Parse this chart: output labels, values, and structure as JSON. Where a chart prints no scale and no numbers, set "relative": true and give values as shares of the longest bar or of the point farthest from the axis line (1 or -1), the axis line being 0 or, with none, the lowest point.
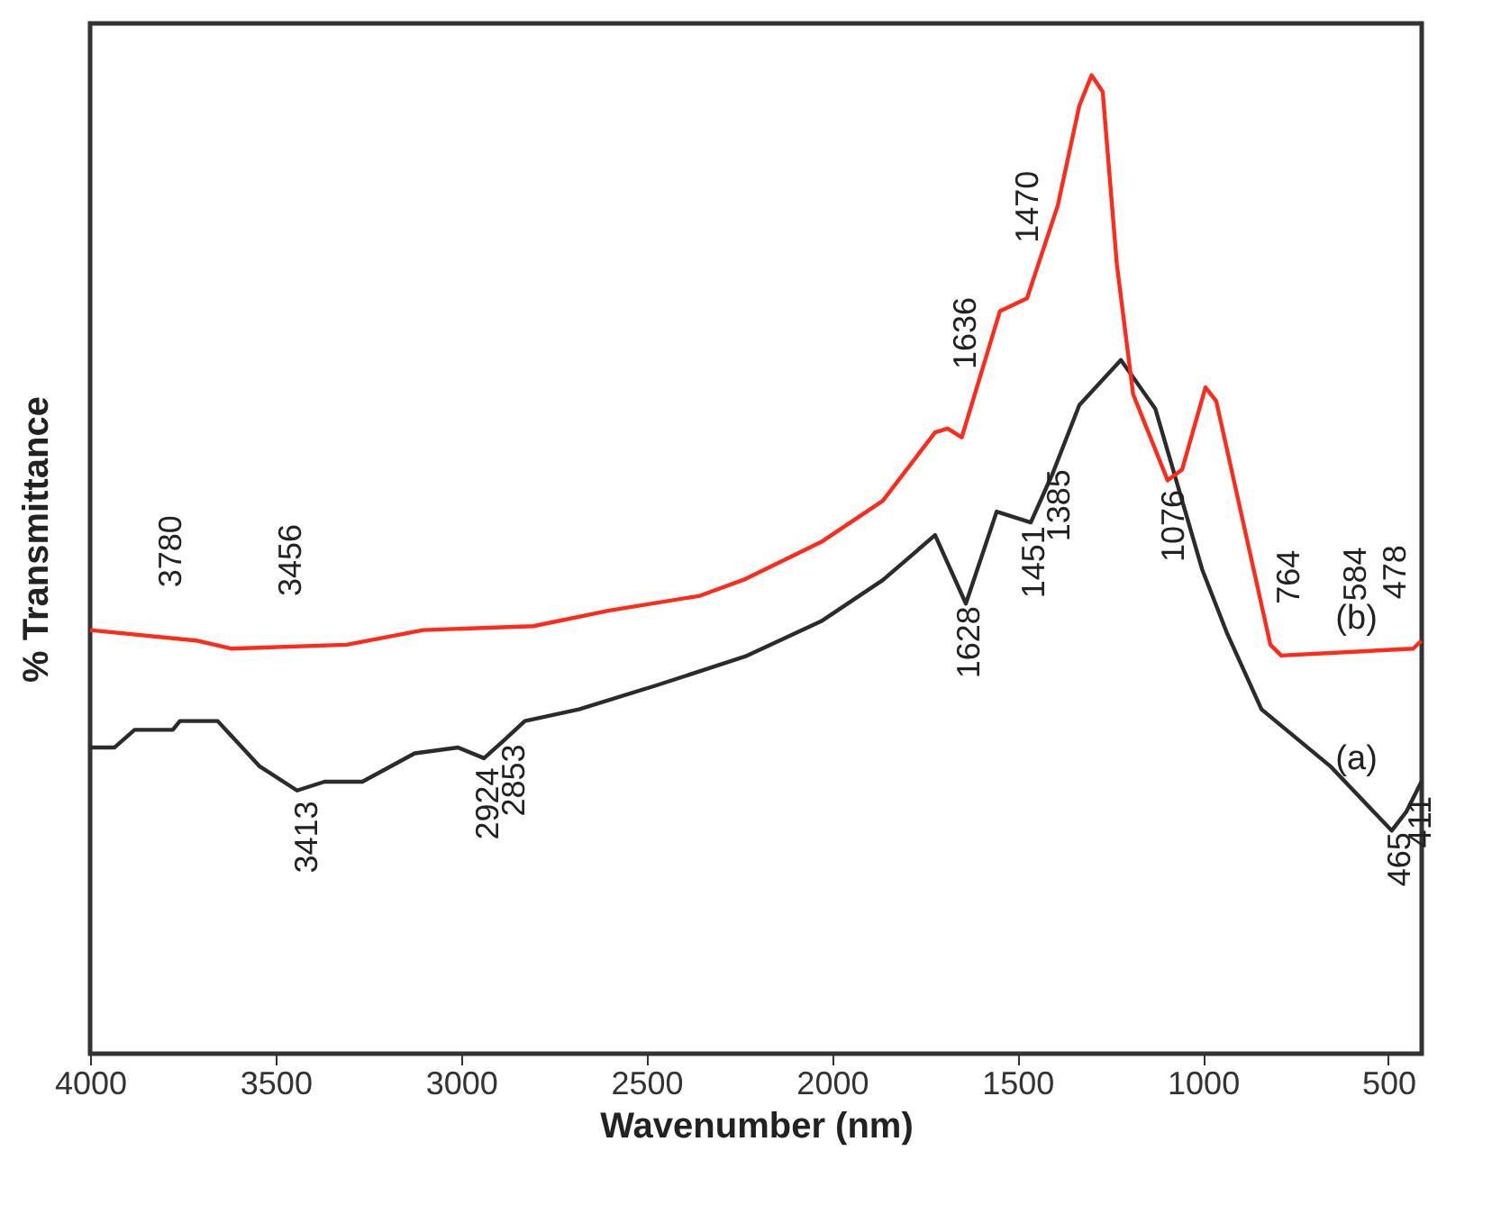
{
  "chart_data": {
    "type": "line",
    "relative": true,
    "xlabel": "Wavenumber (nm)",
    "ylabel": "% Transmittance",
    "xlim": [
      4000,
      410
    ],
    "xticks": [
      4000,
      3500,
      3000,
      2500,
      2000,
      1500,
      1000,
      500
    ],
    "tick_labels": "x",
    "grid": false,
    "marker": "none",
    "line_style": "solid",
    "series": [
      {
        "name": "(a)",
        "color": "#2b2b2b",
        "x": [
          4000,
          3934,
          3880,
          3777,
          3758,
          3656,
          3544,
          3442,
          3368,
          3266,
          3125,
          3008,
          2938,
          2885,
          2828,
          2682,
          2477,
          2234,
          2029,
          1863,
          1722,
          1639,
          1556,
          1464,
          1405,
          1333,
          1221,
          1128,
          1002,
          934,
          842,
          657,
          491,
          452,
          411
        ],
        "values": [
          0.313,
          0.313,
          0.331,
          0.331,
          0.34,
          0.34,
          0.294,
          0.269,
          0.278,
          0.278,
          0.307,
          0.313,
          0.302,
          0.32,
          0.34,
          0.352,
          0.376,
          0.406,
          0.442,
          0.484,
          0.53,
          0.46,
          0.554,
          0.543,
          0.593,
          0.663,
          0.709,
          0.659,
          0.495,
          0.429,
          0.352,
          0.294,
          0.228,
          0.247,
          0.278
        ]
      },
      {
        "name": "(b)",
        "color": "#ff2a1a",
        "x": [
          4000,
          3709,
          3620,
          3308,
          3102,
          2805,
          2600,
          2356,
          2234,
          2029,
          1863,
          1722,
          1688,
          1650,
          1547,
          1474,
          1391,
          1333,
          1300,
          1270,
          1232,
          1188,
          1095,
          1056,
          993,
          964,
          818,
          789,
          433,
          411
        ],
        "values": [
          0.433,
          0.422,
          0.414,
          0.418,
          0.433,
          0.437,
          0.453,
          0.468,
          0.485,
          0.523,
          0.565,
          0.635,
          0.639,
          0.63,
          0.759,
          0.772,
          0.867,
          0.969,
          1.0,
          0.983,
          0.807,
          0.674,
          0.586,
          0.597,
          0.681,
          0.667,
          0.418,
          0.407,
          0.414,
          0.422
        ]
      }
    ],
    "annotations": [
      {
        "text": "3780",
        "x": 3780,
        "y": 0.425
      },
      {
        "text": "3456",
        "x": 3456,
        "y": 0.416
      },
      {
        "text": "3413",
        "x": 3413,
        "y": 0.273
      },
      {
        "text": "2924",
        "x": 2924,
        "y": 0.307
      },
      {
        "text": "2853",
        "x": 2853,
        "y": 0.331
      },
      {
        "text": "1636",
        "x": 1636,
        "y": 0.648
      },
      {
        "text": "1470",
        "x": 1470,
        "y": 0.777
      },
      {
        "text": "1076",
        "x": 1076,
        "y": 0.591
      },
      {
        "text": "1628",
        "x": 1628,
        "y": 0.472
      },
      {
        "text": "1451",
        "x": 1451,
        "y": 0.554
      },
      {
        "text": "1385",
        "x": 1385,
        "y": 0.612
      },
      {
        "text": "764",
        "x": 764,
        "y": 0.408
      },
      {
        "text": "584",
        "x": 584,
        "y": 0.411
      },
      {
        "text": "478",
        "x": 478,
        "y": 0.413
      },
      {
        "text": "465",
        "x": 465,
        "y": 0.241
      },
      {
        "text": "411",
        "x": 411,
        "y": 0.278
      }
    ]
  }
}
